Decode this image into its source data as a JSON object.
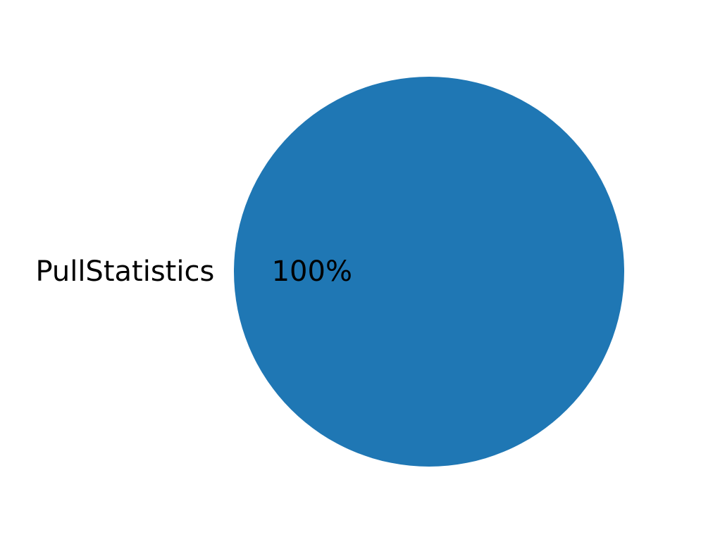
{
  "chart_data": {
    "type": "pie",
    "title": "",
    "slices": [
      {
        "label": "PullStatistics",
        "value": 100,
        "pct_label": "100%",
        "color": "#1f77b4"
      }
    ],
    "start_angle_deg": 0,
    "legend": "none"
  }
}
